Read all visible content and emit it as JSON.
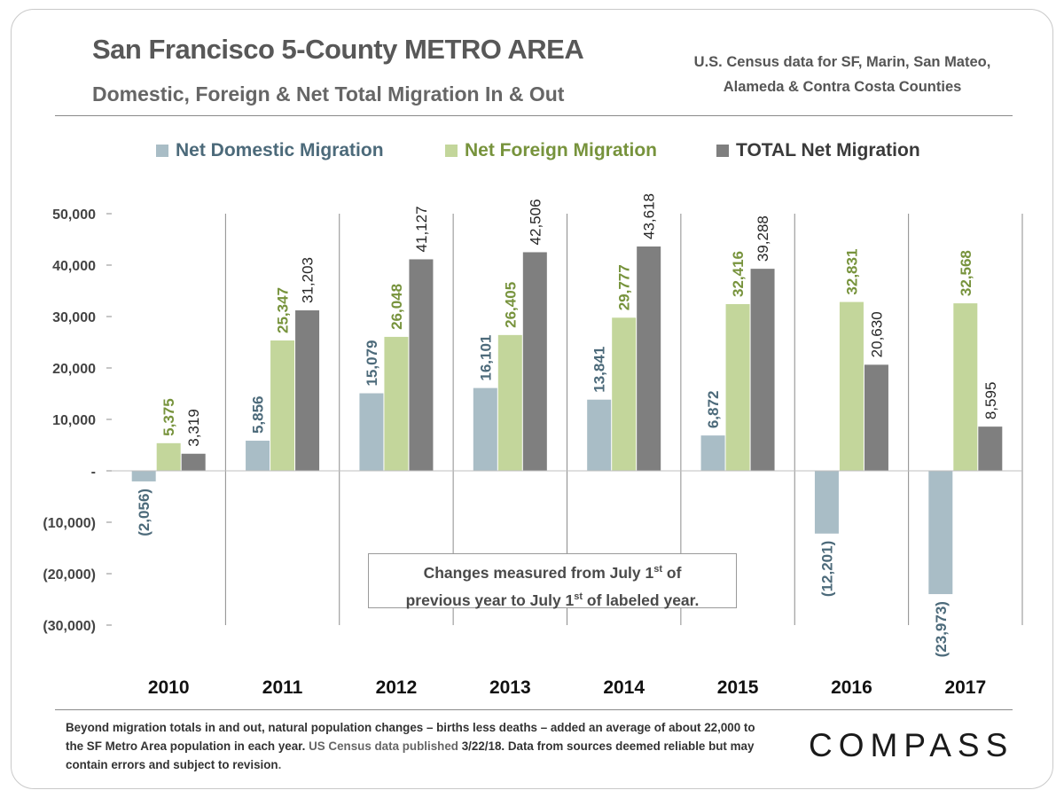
{
  "header": {
    "title": "San Francisco 5-County METRO AREA",
    "subtitle": "Domestic, Foreign & Net Total Migration In & Out",
    "source_line1": "U.S. Census data for SF, Marin, San Mateo,",
    "source_line2": "Alameda  &  Contra Costa Counties"
  },
  "colors": {
    "domestic": "#a9bdc6",
    "foreign": "#c3d69b",
    "total": "#7f7f7f",
    "domestic_text": "#4c6a7a",
    "foreign_text": "#77933c",
    "total_text": "#262626"
  },
  "chart_data": {
    "type": "bar",
    "title": "San Francisco 5-County METRO AREA",
    "categories": [
      "2010",
      "2011",
      "2012",
      "2013",
      "2014",
      "2015",
      "2016",
      "2017"
    ],
    "series": [
      {
        "name": "Net Domestic Migration",
        "values": [
          -2056,
          5856,
          15079,
          16101,
          13841,
          6872,
          -12201,
          -23973
        ],
        "labels": [
          "(2,056)",
          "5,856",
          "15,079",
          "16,101",
          "13,841",
          "6,872",
          "(12,201)",
          "(23,973)"
        ]
      },
      {
        "name": "Net Foreign Migration",
        "values": [
          5375,
          25347,
          26048,
          26405,
          29777,
          32416,
          32831,
          32568
        ],
        "labels": [
          "5,375",
          "25,347",
          "26,048",
          "26,405",
          "29,777",
          "32,416",
          "32,831",
          "32,568"
        ]
      },
      {
        "name": "TOTAL Net Migration",
        "values": [
          3319,
          31203,
          41127,
          42506,
          43618,
          39288,
          20630,
          8595
        ],
        "labels": [
          "3,319",
          "31,203",
          "41,127",
          "42,506",
          "43,618",
          "39,288",
          "20,630",
          "8,595"
        ]
      }
    ],
    "ylim": [
      -30000,
      50000
    ],
    "yticks": [
      50000,
      40000,
      30000,
      20000,
      10000,
      0,
      -10000,
      -20000,
      -30000
    ],
    "ytick_labels": [
      "50,000",
      "40,000",
      "30,000",
      "20,000",
      "10,000",
      "-",
      "(10,000)",
      "(20,000)",
      "(30,000)"
    ],
    "xlabel": "",
    "ylabel": "",
    "legend": "top"
  },
  "note": {
    "line1_a": "Changes measured from July 1",
    "line1_sup": "st",
    "line1_b": " of",
    "line2_a": "previous year to July 1",
    "line2_sup": "st",
    "line2_b": " of labeled year."
  },
  "footer": {
    "bold_text": "Beyond migration totals in and out, natural population changes – births less deaths – added an average of about 22,000 to the SF Metro Area population in each year.",
    "light_text": " US Census data published",
    "bold_text2": "3/22/18. Data from sources deemed reliable but may contain errors and subject to revision",
    "light_text2": "."
  },
  "logo": {
    "text": "COMPASS"
  }
}
